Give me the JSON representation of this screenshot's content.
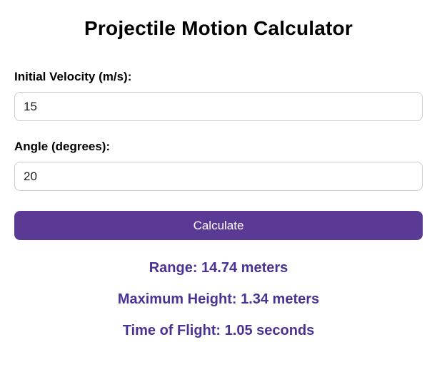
{
  "title": "Projectile Motion Calculator",
  "form": {
    "velocity_label": "Initial Velocity (m/s):",
    "velocity_value": "15",
    "angle_label": "Angle (degrees):",
    "angle_value": "20",
    "calculate_label": "Calculate"
  },
  "results": {
    "range": "Range: 14.74 meters",
    "max_height": "Maximum Height: 1.34 meters",
    "time_of_flight": "Time of Flight: 1.05 seconds"
  },
  "colors": {
    "button_background": "#5b3a96",
    "button_text": "#ffffff",
    "result_text": "#4a3292",
    "input_border": "#cccccc",
    "title_text": "#000000"
  }
}
